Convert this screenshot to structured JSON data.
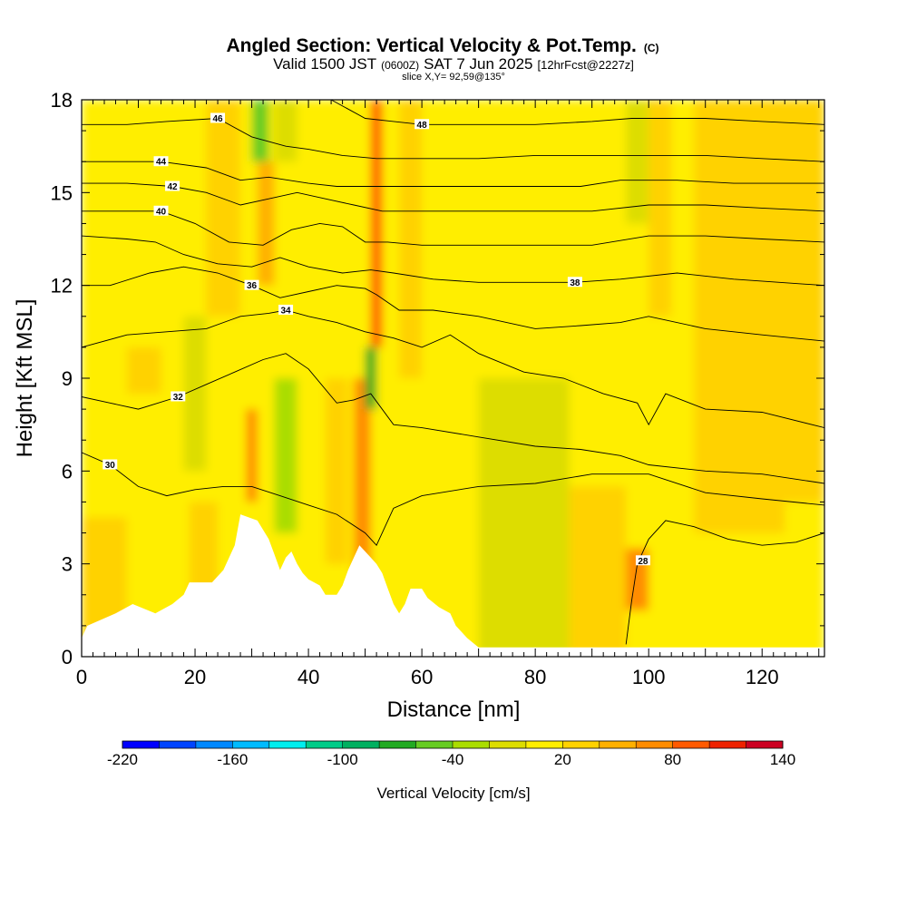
{
  "header": {
    "title": "Angled Section: Vertical Velocity & Pot.Temp.",
    "title_suffix": "(C)",
    "valid_prefix": "Valid 1500 JST",
    "valid_utc": "(0600Z)",
    "valid_date": "SAT 7 Jun 2025",
    "forecast": "[12hrFcst@2227z]",
    "slice": "slice X,Y= 92,59@135°"
  },
  "chart_data": {
    "type": "heatmap",
    "title": "Angled Section: Vertical Velocity & Pot.Temp.",
    "xlabel": "Distance [nm]",
    "ylabel": "Height [Kft MSL]",
    "xlim": [
      0,
      131
    ],
    "ylim": [
      0,
      18
    ],
    "x_ticks": [
      "0",
      "20",
      "40",
      "60",
      "80",
      "100",
      "120"
    ],
    "y_ticks": [
      "0",
      "3",
      "6",
      "9",
      "12",
      "15",
      "18"
    ],
    "x_tick_values": [
      0,
      20,
      40,
      60,
      80,
      100,
      120
    ],
    "y_tick_values": [
      0,
      3,
      6,
      9,
      12,
      15,
      18
    ],
    "colorbar": {
      "title": "Vertical Velocity [cm/s]",
      "min": -220,
      "max": 140,
      "step": 20,
      "labels": [
        "-220",
        "-160",
        "-100",
        "-40",
        "20",
        "80",
        "140"
      ],
      "colors": [
        "#0000ff",
        "#0044ff",
        "#0088ff",
        "#00bbff",
        "#00eeee",
        "#00cc88",
        "#00b060",
        "#22aa22",
        "#66cc22",
        "#aadd00",
        "#dddd00",
        "#ffee00",
        "#ffd200",
        "#ffb000",
        "#ff8c00",
        "#ff5a00",
        "#ee2200",
        "#cc0022",
        "#aa0044",
        "#8a005a",
        "#6a1a8a"
      ]
    },
    "terrain": [
      [
        0,
        0.6
      ],
      [
        1,
        1.0
      ],
      [
        6,
        1.4
      ],
      [
        9,
        1.7
      ],
      [
        13,
        1.4
      ],
      [
        16,
        1.7
      ],
      [
        18,
        2.0
      ],
      [
        19,
        2.4
      ],
      [
        23,
        2.4
      ],
      [
        25,
        2.8
      ],
      [
        27,
        3.6
      ],
      [
        28,
        4.6
      ],
      [
        31,
        4.4
      ],
      [
        33,
        3.8
      ],
      [
        34,
        3.3
      ],
      [
        35,
        2.8
      ],
      [
        36,
        3.2
      ],
      [
        37,
        3.4
      ],
      [
        38,
        3.0
      ],
      [
        39,
        2.7
      ],
      [
        40,
        2.5
      ],
      [
        42,
        2.3
      ],
      [
        43,
        2.0
      ],
      [
        45,
        2.0
      ],
      [
        46,
        2.3
      ],
      [
        47,
        2.8
      ],
      [
        48,
        3.2
      ],
      [
        49,
        3.6
      ],
      [
        50,
        3.4
      ],
      [
        51,
        3.2
      ],
      [
        52,
        3.0
      ],
      [
        53,
        2.7
      ],
      [
        54,
        2.2
      ],
      [
        55,
        1.7
      ],
      [
        56,
        1.4
      ],
      [
        57,
        1.7
      ],
      [
        58,
        2.2
      ],
      [
        60,
        2.2
      ],
      [
        61,
        1.9
      ],
      [
        63,
        1.6
      ],
      [
        65,
        1.4
      ],
      [
        66,
        1.0
      ],
      [
        68,
        0.6
      ],
      [
        70,
        0.3
      ],
      [
        131,
        0.3
      ]
    ],
    "velocity_cells": [
      {
        "x0": 0,
        "x1": 131,
        "y0": 0,
        "y1": 18,
        "w": 10
      },
      {
        "x0": 0,
        "x1": 20,
        "y0": 0,
        "y1": 12,
        "w": 0
      },
      {
        "x0": 0,
        "x1": 8,
        "y0": 0,
        "y1": 4.5,
        "w": 25
      },
      {
        "x0": 8,
        "x1": 14,
        "y0": 8.5,
        "y1": 10,
        "w": 30
      },
      {
        "x0": 18,
        "x1": 22,
        "y0": 6,
        "y1": 11,
        "w": -20
      },
      {
        "x0": 19,
        "x1": 24,
        "y0": 0,
        "y1": 5,
        "w": 30
      },
      {
        "x0": 22,
        "x1": 28,
        "y0": 11,
        "y1": 18,
        "w": 35
      },
      {
        "x0": 29,
        "x1": 31,
        "y0": 5,
        "y1": 8,
        "w": 60
      },
      {
        "x0": 31,
        "x1": 34,
        "y0": 12,
        "y1": 16,
        "w": 55
      },
      {
        "x0": 30,
        "x1": 33,
        "y0": 16,
        "y1": 18,
        "w": -60
      },
      {
        "x0": 34,
        "x1": 38,
        "y0": 16,
        "y1": 18,
        "w": -20
      },
      {
        "x0": 34,
        "x1": 38,
        "y0": 4,
        "y1": 9,
        "w": -25
      },
      {
        "x0": 43,
        "x1": 47,
        "y0": 3,
        "y1": 9,
        "w": 30
      },
      {
        "x0": 48,
        "x1": 51,
        "y0": 0,
        "y1": 9,
        "w": 70
      },
      {
        "x0": 51,
        "x1": 53,
        "y0": 10,
        "y1": 18,
        "w": 90
      },
      {
        "x0": 50,
        "x1": 52,
        "y0": 8,
        "y1": 10,
        "w": -70
      },
      {
        "x0": 56,
        "x1": 60,
        "y0": 9,
        "y1": 18,
        "w": 25
      },
      {
        "x0": 70,
        "x1": 86,
        "y0": 0,
        "y1": 9,
        "w": -20
      },
      {
        "x0": 86,
        "x1": 96,
        "y0": 0,
        "y1": 5.5,
        "w": 30
      },
      {
        "x0": 96,
        "x1": 100,
        "y0": 1.5,
        "y1": 3.5,
        "w": 70
      },
      {
        "x0": 100,
        "x1": 108,
        "y0": 0,
        "y1": 6,
        "w": 0
      },
      {
        "x0": 108,
        "x1": 124,
        "y0": 4,
        "y1": 18,
        "w": 25
      },
      {
        "x0": 124,
        "x1": 131,
        "y0": 5,
        "y1": 18,
        "w": 30
      },
      {
        "x0": 96,
        "x1": 100,
        "y0": 14,
        "y1": 18,
        "w": -20
      },
      {
        "x0": 100,
        "x1": 104,
        "y0": 11,
        "y1": 18,
        "w": 30
      }
    ],
    "theta_contours": [
      {
        "label": "28",
        "label_at": [
          99,
          3.1
        ],
        "pts": [
          [
            96,
            0.4
          ],
          [
            97,
            1.8
          ],
          [
            98,
            3.0
          ],
          [
            100,
            3.8
          ],
          [
            103,
            4.4
          ],
          [
            108,
            4.2
          ],
          [
            114,
            3.8
          ],
          [
            120,
            3.6
          ],
          [
            126,
            3.7
          ],
          [
            131,
            4.0
          ]
        ]
      },
      {
        "label": "30",
        "label_at": [
          5,
          6.2
        ],
        "pts": [
          [
            0,
            6.6
          ],
          [
            5,
            6.2
          ],
          [
            10,
            5.5
          ],
          [
            15,
            5.2
          ],
          [
            20,
            5.4
          ],
          [
            25,
            5.5
          ],
          [
            30,
            5.5
          ],
          [
            35,
            5.2
          ],
          [
            40,
            4.9
          ],
          [
            45,
            4.6
          ],
          [
            50,
            4.0
          ],
          [
            52,
            3.6
          ],
          [
            55,
            4.8
          ],
          [
            60,
            5.2
          ],
          [
            70,
            5.5
          ],
          [
            80,
            5.6
          ],
          [
            90,
            5.9
          ],
          [
            100,
            5.9
          ],
          [
            110,
            5.3
          ],
          [
            120,
            5.1
          ],
          [
            131,
            4.9
          ]
        ]
      },
      {
        "label": "32",
        "label_at": [
          17,
          8.4
        ],
        "pts": [
          [
            0,
            8.4
          ],
          [
            5,
            8.2
          ],
          [
            10,
            8.0
          ],
          [
            17,
            8.4
          ],
          [
            22,
            8.8
          ],
          [
            27,
            9.2
          ],
          [
            32,
            9.6
          ],
          [
            36,
            9.8
          ],
          [
            40,
            9.3
          ],
          [
            45,
            8.2
          ],
          [
            48,
            8.3
          ],
          [
            51,
            8.5
          ],
          [
            55,
            7.5
          ],
          [
            60,
            7.4
          ],
          [
            70,
            7.1
          ],
          [
            80,
            6.8
          ],
          [
            88,
            6.7
          ],
          [
            95,
            6.5
          ],
          [
            100,
            6.2
          ],
          [
            110,
            6.0
          ],
          [
            120,
            5.9
          ],
          [
            131,
            5.6
          ]
        ]
      },
      {
        "label": "34",
        "label_at": [
          36,
          11.2
        ],
        "pts": [
          [
            0,
            10.0
          ],
          [
            8,
            10.4
          ],
          [
            15,
            10.5
          ],
          [
            22,
            10.6
          ],
          [
            28,
            11.0
          ],
          [
            33,
            11.1
          ],
          [
            36,
            11.2
          ],
          [
            40,
            11.0
          ],
          [
            45,
            10.8
          ],
          [
            50,
            10.5
          ],
          [
            55,
            10.3
          ],
          [
            60,
            10.0
          ],
          [
            65,
            10.4
          ],
          [
            70,
            9.8
          ],
          [
            78,
            9.2
          ],
          [
            85,
            9.0
          ],
          [
            92,
            8.5
          ],
          [
            98,
            8.2
          ],
          [
            100,
            7.5
          ],
          [
            103,
            8.5
          ],
          [
            110,
            8.0
          ],
          [
            120,
            7.9
          ],
          [
            131,
            7.4
          ]
        ]
      },
      {
        "label": "36",
        "label_at": [
          30,
          12.0
        ],
        "pts": [
          [
            0,
            12.0
          ],
          [
            5,
            12.0
          ],
          [
            12,
            12.4
          ],
          [
            18,
            12.6
          ],
          [
            24,
            12.4
          ],
          [
            30,
            12.0
          ],
          [
            35,
            11.6
          ],
          [
            40,
            11.8
          ],
          [
            45,
            12.0
          ],
          [
            50,
            11.9
          ],
          [
            52,
            11.7
          ],
          [
            56,
            11.2
          ],
          [
            62,
            11.2
          ],
          [
            70,
            11.0
          ],
          [
            80,
            10.6
          ],
          [
            88,
            10.7
          ],
          [
            95,
            10.8
          ],
          [
            100,
            11.0
          ],
          [
            110,
            10.6
          ],
          [
            120,
            10.4
          ],
          [
            131,
            10.2
          ]
        ]
      },
      {
        "label": "38",
        "label_at": [
          87,
          12.1
        ],
        "pts": [
          [
            0,
            13.6
          ],
          [
            8,
            13.5
          ],
          [
            13,
            13.4
          ],
          [
            18,
            13.0
          ],
          [
            24,
            12.7
          ],
          [
            30,
            12.6
          ],
          [
            35,
            12.9
          ],
          [
            40,
            12.6
          ],
          [
            46,
            12.4
          ],
          [
            51,
            12.5
          ],
          [
            55,
            12.4
          ],
          [
            62,
            12.2
          ],
          [
            70,
            12.1
          ],
          [
            80,
            12.1
          ],
          [
            87,
            12.1
          ],
          [
            95,
            12.2
          ],
          [
            105,
            12.4
          ],
          [
            115,
            12.2
          ],
          [
            131,
            12.0
          ]
        ]
      },
      {
        "label": "40",
        "label_at": [
          14,
          14.4
        ],
        "pts": [
          [
            0,
            14.4
          ],
          [
            8,
            14.4
          ],
          [
            14,
            14.4
          ],
          [
            20,
            14.0
          ],
          [
            26,
            13.4
          ],
          [
            32,
            13.3
          ],
          [
            37,
            13.8
          ],
          [
            42,
            14.0
          ],
          [
            46,
            13.9
          ],
          [
            50,
            13.4
          ],
          [
            54,
            13.4
          ],
          [
            60,
            13.3
          ],
          [
            70,
            13.3
          ],
          [
            80,
            13.3
          ],
          [
            90,
            13.3
          ],
          [
            100,
            13.6
          ],
          [
            110,
            13.6
          ],
          [
            120,
            13.5
          ],
          [
            131,
            13.4
          ]
        ]
      },
      {
        "label": "42",
        "label_at": [
          16,
          15.2
        ],
        "pts": [
          [
            0,
            15.3
          ],
          [
            8,
            15.3
          ],
          [
            16,
            15.2
          ],
          [
            22,
            15.0
          ],
          [
            28,
            14.6
          ],
          [
            33,
            14.8
          ],
          [
            38,
            15.0
          ],
          [
            43,
            14.8
          ],
          [
            48,
            14.6
          ],
          [
            53,
            14.4
          ],
          [
            60,
            14.4
          ],
          [
            70,
            14.4
          ],
          [
            80,
            14.4
          ],
          [
            90,
            14.4
          ],
          [
            100,
            14.6
          ],
          [
            110,
            14.6
          ],
          [
            120,
            14.5
          ],
          [
            131,
            14.4
          ]
        ]
      },
      {
        "label": "44",
        "label_at": [
          14,
          16.0
        ],
        "pts": [
          [
            0,
            16.0
          ],
          [
            8,
            16.0
          ],
          [
            14,
            16.0
          ],
          [
            22,
            15.8
          ],
          [
            28,
            15.4
          ],
          [
            33,
            15.5
          ],
          [
            40,
            15.3
          ],
          [
            45,
            15.2
          ],
          [
            52,
            15.2
          ],
          [
            60,
            15.2
          ],
          [
            70,
            15.2
          ],
          [
            80,
            15.2
          ],
          [
            88,
            15.2
          ],
          [
            95,
            15.4
          ],
          [
            105,
            15.4
          ],
          [
            115,
            15.3
          ],
          [
            131,
            15.3
          ]
        ]
      },
      {
        "label": "46",
        "label_at": [
          24,
          17.4
        ],
        "pts": [
          [
            0,
            17.2
          ],
          [
            8,
            17.2
          ],
          [
            15,
            17.3
          ],
          [
            24,
            17.4
          ],
          [
            30,
            16.8
          ],
          [
            36,
            16.5
          ],
          [
            40,
            16.4
          ],
          [
            46,
            16.2
          ],
          [
            52,
            16.1
          ],
          [
            60,
            16.1
          ],
          [
            70,
            16.1
          ],
          [
            80,
            16.2
          ],
          [
            90,
            16.2
          ],
          [
            100,
            16.2
          ],
          [
            110,
            16.2
          ],
          [
            120,
            16.1
          ],
          [
            131,
            16.0
          ]
        ]
      },
      {
        "label": "48",
        "label_at": [
          60,
          17.2
        ],
        "pts": [
          [
            44,
            18.0
          ],
          [
            50,
            17.4
          ],
          [
            55,
            17.3
          ],
          [
            60,
            17.2
          ],
          [
            70,
            17.2
          ],
          [
            80,
            17.2
          ],
          [
            90,
            17.3
          ],
          [
            97,
            17.4
          ],
          [
            103,
            17.4
          ],
          [
            110,
            17.4
          ],
          [
            120,
            17.3
          ],
          [
            131,
            17.2
          ]
        ]
      }
    ]
  }
}
